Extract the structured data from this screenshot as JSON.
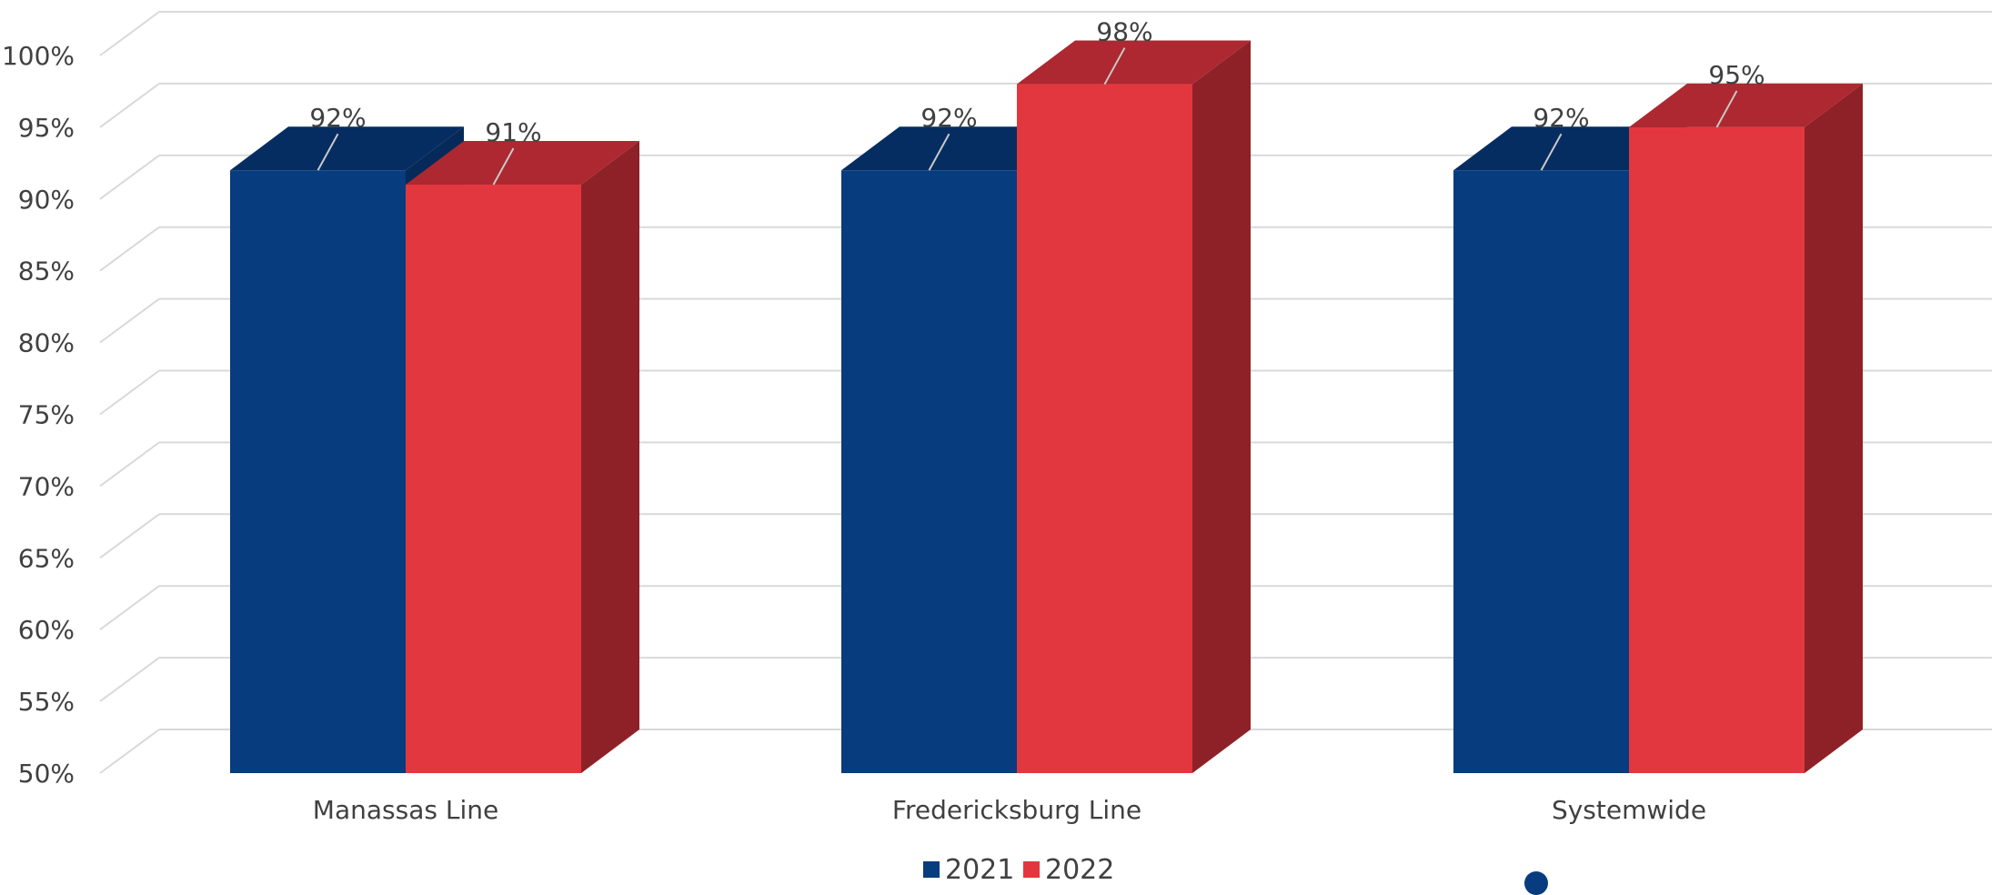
{
  "chart_data": {
    "type": "bar",
    "style": "3d-clustered-column",
    "categories": [
      "Manassas Line",
      "Fredericksburg Line",
      "Systemwide"
    ],
    "series": [
      {
        "name": "2021",
        "values": [
          92,
          92,
          92
        ],
        "labels": [
          "92%",
          "92%",
          "92%"
        ],
        "color": "#073c7e",
        "top_color": "#062d61",
        "side_color": "#052a59"
      },
      {
        "name": "2022",
        "values": [
          91,
          98,
          95
        ],
        "labels": [
          "91%",
          "98%",
          "95%"
        ],
        "color": "#e3373f",
        "top_color": "#ad2830",
        "side_color": "#8e2127"
      }
    ],
    "ylim": [
      50,
      100
    ],
    "yticks": [
      "50%",
      "55%",
      "60%",
      "65%",
      "70%",
      "75%",
      "80%",
      "85%",
      "90%",
      "95%",
      "100%"
    ],
    "grid": true,
    "legend_position": "bottom"
  }
}
